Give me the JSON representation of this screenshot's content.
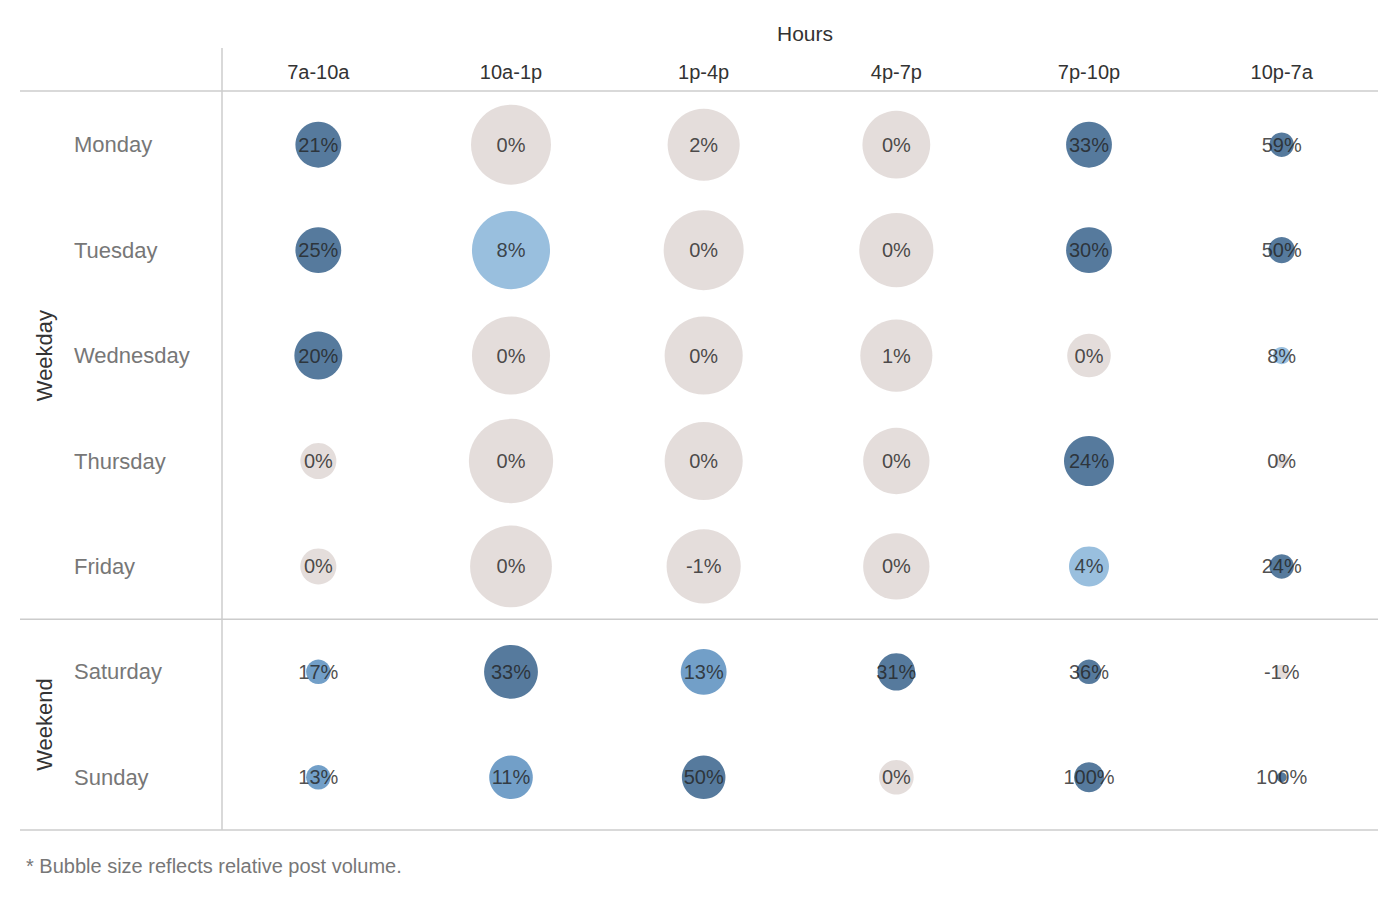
{
  "chart_data": {
    "type": "bubble",
    "title": "Hours",
    "categories": [
      "7a-10a",
      "10a-1p",
      "1p-4p",
      "4p-7p",
      "7p-10p",
      "10p-7a"
    ],
    "groups": [
      {
        "name": "Weekday",
        "categories": [
          "Monday",
          "Tuesday",
          "Wednesday",
          "Thursday",
          "Friday"
        ]
      },
      {
        "name": "Weekend",
        "categories": [
          "Saturday",
          "Sunday"
        ]
      }
    ],
    "values": [
      [
        21,
        0,
        2,
        0,
        33,
        59
      ],
      [
        25,
        8,
        0,
        0,
        30,
        50
      ],
      [
        20,
        0,
        0,
        1,
        0,
        8
      ],
      [
        0,
        0,
        0,
        0,
        24,
        0
      ],
      [
        0,
        0,
        -1,
        0,
        4,
        24
      ],
      [
        17,
        33,
        13,
        31,
        36,
        -1
      ],
      [
        13,
        11,
        50,
        0,
        100,
        100
      ]
    ],
    "value_labels": [
      [
        "21%",
        "0%",
        "2%",
        "0%",
        "33%",
        "59%"
      ],
      [
        "25%",
        "8%",
        "0%",
        "0%",
        "30%",
        "50%"
      ],
      [
        "20%",
        "0%",
        "0%",
        "1%",
        "0%",
        "8%"
      ],
      [
        "0%",
        "0%",
        "0%",
        "0%",
        "24%",
        "0%"
      ],
      [
        "0%",
        "0%",
        "-1%",
        "0%",
        "4%",
        "24%"
      ],
      [
        "17%",
        "33%",
        "13%",
        "31%",
        "36%",
        "-1%"
      ],
      [
        "13%",
        "11%",
        "50%",
        "0%",
        "100%",
        "100%"
      ]
    ],
    "sizes": [
      [
        21,
        64,
        52,
        46,
        21,
        6
      ],
      [
        21,
        61,
        64,
        55,
        21,
        7
      ],
      [
        23,
        61,
        61,
        52,
        19,
        3
      ],
      [
        13,
        71,
        61,
        44,
        25,
        2
      ],
      [
        13,
        67,
        55,
        44,
        16,
        6
      ],
      [
        6,
        29,
        21,
        14,
        6,
        2
      ],
      [
        6,
        19,
        19,
        12,
        9,
        1
      ]
    ],
    "colors": [
      [
        "#2c5985",
        "#ddd4d2",
        "#ddd4d2",
        "#ddd4d2",
        "#2c5985",
        "#2c5985"
      ],
      [
        "#2c5985",
        "#7fafd6",
        "#ddd4d2",
        "#ddd4d2",
        "#2c5985",
        "#2c5985"
      ],
      [
        "#2c5985",
        "#ddd4d2",
        "#ddd4d2",
        "#ddd4d2",
        "#ddd4d2",
        "#7fafd6"
      ],
      [
        "#ddd4d2",
        "#ddd4d2",
        "#ddd4d2",
        "#ddd4d2",
        "#2c5985",
        "#ddd4d2"
      ],
      [
        "#ddd4d2",
        "#ddd4d2",
        "#ddd4d2",
        "#ddd4d2",
        "#7fafd6",
        "#2c5985"
      ],
      [
        "#4f87ba",
        "#2c5985",
        "#4f87ba",
        "#2c5985",
        "#2c5985",
        "#ddd4d2"
      ],
      [
        "#4f87ba",
        "#4f87ba",
        "#2c5985",
        "#ddd4d2",
        "#2c5985",
        "#2c5985"
      ]
    ],
    "data_labels": true,
    "grid": false,
    "footnote": "* Bubble size reflects relative post volume."
  }
}
